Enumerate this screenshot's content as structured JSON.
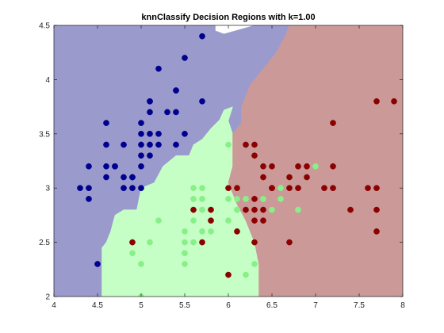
{
  "chart_data": {
    "type": "scatter",
    "title": "knnClassify Decision Regions with k=1.00",
    "xlabel": "",
    "ylabel": "",
    "xlim": [
      4,
      8
    ],
    "ylim": [
      2,
      4.5
    ],
    "x_ticks": [
      "4",
      "4.5",
      "5",
      "5.5",
      "6",
      "6.5",
      "7",
      "7.5",
      "8"
    ],
    "y_ticks": [
      "2",
      "2.5",
      "3",
      "3.5",
      "4",
      "4.5"
    ],
    "grid": false,
    "legend": "none",
    "regions": [
      {
        "class": "class-1",
        "color": "#9a9acc",
        "polygon": [
          [
            4.0,
            4.5
          ],
          [
            5.85,
            4.5
          ],
          [
            5.85,
            4.45
          ],
          [
            5.95,
            4.42
          ],
          [
            6.3,
            4.5
          ],
          [
            6.7,
            4.5
          ],
          [
            6.65,
            4.4
          ],
          [
            6.55,
            4.25
          ],
          [
            6.4,
            4.1
          ],
          [
            6.25,
            3.95
          ],
          [
            6.15,
            3.75
          ],
          [
            6.15,
            3.6
          ],
          [
            6.05,
            3.5
          ],
          [
            5.95,
            3.4
          ],
          [
            5.9,
            3.3
          ],
          [
            5.7,
            3.25
          ],
          [
            5.55,
            3.2
          ],
          [
            5.5,
            3.15
          ],
          [
            5.3,
            3.15
          ],
          [
            5.2,
            3.05
          ],
          [
            5.0,
            3.0
          ],
          [
            4.95,
            2.8
          ],
          [
            4.8,
            2.8
          ],
          [
            4.7,
            2.75
          ],
          [
            4.65,
            2.6
          ],
          [
            4.6,
            2.5
          ],
          [
            4.55,
            2.45
          ],
          [
            4.55,
            2.3
          ],
          [
            4.55,
            2.15
          ],
          [
            4.55,
            2.0
          ],
          [
            4.0,
            2.0
          ]
        ]
      },
      {
        "class": "class-2",
        "color": "#c5ffc5",
        "polygon": [
          [
            4.55,
            2.0
          ],
          [
            6.35,
            2.0
          ],
          [
            6.35,
            2.3
          ],
          [
            6.3,
            2.5
          ],
          [
            6.2,
            2.7
          ],
          [
            6.1,
            2.85
          ],
          [
            6.0,
            3.05
          ],
          [
            6.05,
            3.2
          ],
          [
            6.05,
            3.35
          ],
          [
            6.05,
            3.5
          ],
          [
            6.0,
            3.62
          ],
          [
            6.05,
            3.75
          ],
          [
            5.95,
            3.72
          ],
          [
            5.9,
            3.63
          ],
          [
            5.8,
            3.55
          ],
          [
            5.7,
            3.45
          ],
          [
            5.6,
            3.4
          ],
          [
            5.55,
            3.3
          ],
          [
            5.4,
            3.3
          ],
          [
            5.25,
            3.2
          ],
          [
            5.15,
            3.05
          ],
          [
            5.0,
            3.0
          ],
          [
            4.95,
            2.8
          ],
          [
            4.8,
            2.8
          ],
          [
            4.7,
            2.75
          ],
          [
            4.65,
            2.6
          ],
          [
            4.6,
            2.5
          ],
          [
            4.55,
            2.45
          ],
          [
            4.55,
            2.3
          ]
        ]
      },
      {
        "class": "class-3",
        "color": "#cc9999",
        "polygon": [
          [
            6.35,
            2.0
          ],
          [
            8.0,
            2.0
          ],
          [
            8.0,
            4.5
          ],
          [
            6.7,
            4.5
          ],
          [
            6.65,
            4.4
          ],
          [
            6.55,
            4.25
          ],
          [
            6.4,
            4.1
          ],
          [
            6.25,
            3.95
          ],
          [
            6.15,
            3.75
          ],
          [
            6.15,
            3.6
          ],
          [
            6.05,
            3.5
          ],
          [
            6.05,
            3.35
          ],
          [
            6.05,
            3.2
          ],
          [
            6.0,
            3.05
          ],
          [
            6.1,
            2.85
          ],
          [
            6.2,
            2.7
          ],
          [
            6.3,
            2.5
          ],
          [
            6.35,
            2.3
          ]
        ]
      }
    ],
    "series": [
      {
        "class": "class-1",
        "color": "#00008f",
        "points": [
          [
            4.3,
            3.0
          ],
          [
            4.4,
            2.9
          ],
          [
            4.4,
            3.0
          ],
          [
            4.4,
            3.2
          ],
          [
            4.5,
            2.3
          ],
          [
            4.6,
            3.1
          ],
          [
            4.6,
            3.2
          ],
          [
            4.6,
            3.4
          ],
          [
            4.6,
            3.6
          ],
          [
            4.7,
            3.2
          ],
          [
            4.7,
            3.2
          ],
          [
            4.8,
            3.0
          ],
          [
            4.8,
            3.1
          ],
          [
            4.8,
            3.4
          ],
          [
            4.9,
            3.0
          ],
          [
            4.9,
            3.1
          ],
          [
            4.9,
            3.1
          ],
          [
            5.0,
            3.0
          ],
          [
            5.0,
            3.2
          ],
          [
            5.0,
            3.3
          ],
          [
            5.0,
            3.4
          ],
          [
            5.0,
            3.5
          ],
          [
            5.0,
            3.6
          ],
          [
            5.1,
            3.3
          ],
          [
            5.1,
            3.4
          ],
          [
            5.1,
            3.5
          ],
          [
            5.1,
            3.7
          ],
          [
            5.1,
            3.8
          ],
          [
            5.1,
            3.8
          ],
          [
            5.2,
            3.4
          ],
          [
            5.2,
            3.5
          ],
          [
            5.2,
            4.1
          ],
          [
            5.3,
            3.7
          ],
          [
            5.4,
            3.4
          ],
          [
            5.4,
            3.7
          ],
          [
            5.4,
            3.9
          ],
          [
            5.4,
            3.9
          ],
          [
            5.5,
            3.5
          ],
          [
            5.5,
            4.2
          ],
          [
            5.7,
            3.8
          ],
          [
            5.7,
            4.4
          ]
        ]
      },
      {
        "class": "class-2",
        "color": "#88f088",
        "points": [
          [
            4.9,
            2.4
          ],
          [
            5.0,
            2.0
          ],
          [
            5.0,
            2.3
          ],
          [
            5.1,
            2.5
          ],
          [
            5.2,
            2.7
          ],
          [
            5.5,
            2.3
          ],
          [
            5.5,
            2.4
          ],
          [
            5.5,
            2.4
          ],
          [
            5.5,
            2.5
          ],
          [
            5.5,
            2.6
          ],
          [
            5.6,
            2.5
          ],
          [
            5.6,
            2.7
          ],
          [
            5.6,
            2.9
          ],
          [
            5.6,
            3.0
          ],
          [
            5.7,
            2.6
          ],
          [
            5.7,
            2.8
          ],
          [
            5.7,
            2.9
          ],
          [
            5.7,
            3.0
          ],
          [
            5.8,
            2.6
          ],
          [
            5.8,
            2.7
          ],
          [
            5.8,
            2.7
          ],
          [
            6.0,
            2.2
          ],
          [
            6.0,
            2.7
          ],
          [
            6.0,
            2.9
          ],
          [
            6.0,
            3.4
          ],
          [
            6.1,
            2.8
          ],
          [
            6.1,
            2.8
          ],
          [
            6.1,
            2.9
          ],
          [
            6.1,
            3.0
          ],
          [
            6.2,
            2.2
          ],
          [
            6.2,
            2.9
          ],
          [
            6.3,
            2.3
          ],
          [
            6.3,
            2.5
          ],
          [
            6.3,
            3.3
          ],
          [
            6.4,
            2.9
          ],
          [
            6.4,
            3.2
          ],
          [
            6.5,
            2.8
          ],
          [
            6.6,
            2.9
          ],
          [
            6.6,
            3.0
          ],
          [
            6.7,
            3.0
          ],
          [
            6.7,
            3.1
          ],
          [
            6.8,
            2.8
          ],
          [
            6.9,
            3.1
          ],
          [
            7.0,
            3.2
          ]
        ]
      },
      {
        "class": "class-3",
        "color": "#8b0000",
        "points": [
          [
            4.9,
            2.5
          ],
          [
            5.6,
            2.8
          ],
          [
            5.7,
            2.5
          ],
          [
            5.8,
            2.7
          ],
          [
            5.8,
            2.8
          ],
          [
            6.0,
            2.2
          ],
          [
            6.0,
            3.0
          ],
          [
            6.1,
            2.6
          ],
          [
            6.1,
            3.0
          ],
          [
            6.2,
            2.8
          ],
          [
            6.2,
            3.4
          ],
          [
            6.3,
            2.5
          ],
          [
            6.3,
            2.7
          ],
          [
            6.3,
            2.8
          ],
          [
            6.3,
            2.9
          ],
          [
            6.3,
            3.3
          ],
          [
            6.3,
            3.4
          ],
          [
            6.4,
            2.7
          ],
          [
            6.4,
            2.8
          ],
          [
            6.4,
            3.1
          ],
          [
            6.4,
            3.2
          ],
          [
            6.5,
            3.0
          ],
          [
            6.5,
            3.0
          ],
          [
            6.5,
            3.2
          ],
          [
            6.7,
            2.5
          ],
          [
            6.7,
            3.0
          ],
          [
            6.7,
            3.1
          ],
          [
            6.8,
            3.0
          ],
          [
            6.8,
            3.2
          ],
          [
            6.9,
            3.1
          ],
          [
            6.9,
            3.2
          ],
          [
            7.1,
            3.0
          ],
          [
            7.2,
            3.0
          ],
          [
            7.2,
            3.2
          ],
          [
            7.2,
            3.6
          ],
          [
            7.4,
            2.8
          ],
          [
            7.6,
            3.0
          ],
          [
            7.7,
            2.6
          ],
          [
            7.7,
            2.8
          ],
          [
            7.7,
            3.0
          ],
          [
            7.7,
            3.8
          ],
          [
            7.9,
            3.8
          ]
        ]
      }
    ]
  }
}
